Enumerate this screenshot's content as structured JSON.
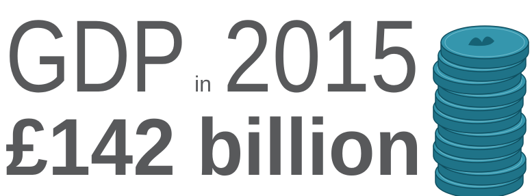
{
  "headline": {
    "label": "GDP",
    "connector": "in",
    "year": "2015"
  },
  "amount": "£142 billion"
}
